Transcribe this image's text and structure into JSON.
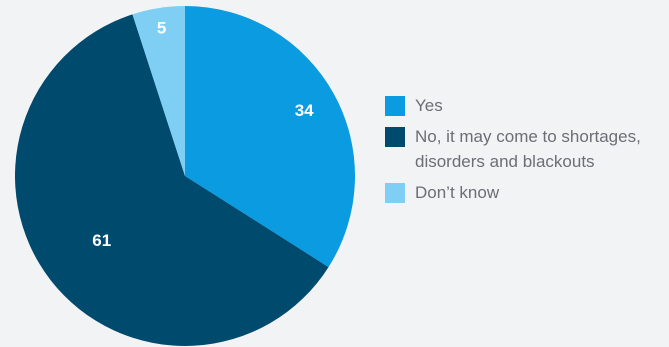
{
  "chart_data": {
    "type": "pie",
    "series": [
      {
        "name": "Yes",
        "value": 34,
        "color": "#0a9be0"
      },
      {
        "name": "No, it may come to shortages, disorders and blackouts",
        "value": 61,
        "color": "#004a6e"
      },
      {
        "name": "Don’t know",
        "value": 5,
        "color": "#7fcff5"
      }
    ],
    "slice_order_clockwise_from_top": [
      "Yes",
      "No, it may come to shortages, disorders and blackouts",
      "Don’t know"
    ],
    "data_labels": [
      "34",
      "61",
      "5"
    ],
    "legend_placement": "right"
  },
  "legend": {
    "items": [
      {
        "label": "Yes",
        "color": "#0a9be0"
      },
      {
        "label": "No, it may come to shortages, disorders and blackouts",
        "color": "#004a6e"
      },
      {
        "label": "Don’t know",
        "color": "#7fcff5"
      }
    ]
  }
}
